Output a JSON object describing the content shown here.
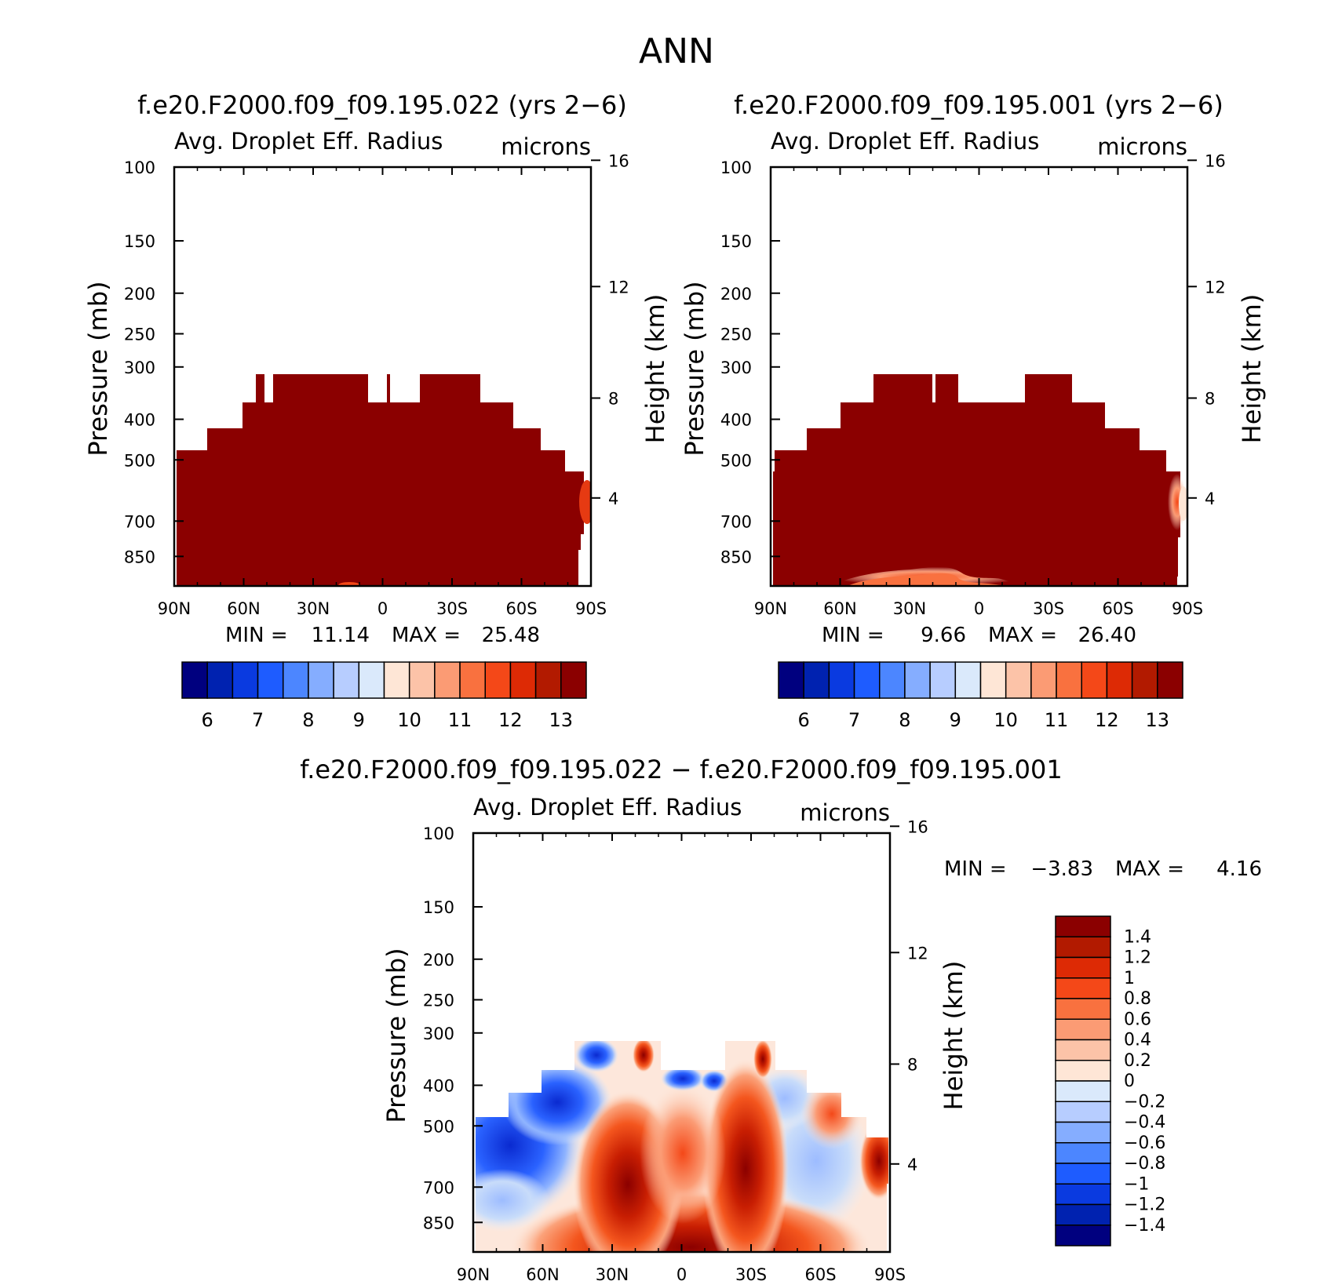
{
  "title": "ANN",
  "colors": {
    "panel_fill": "#8b0000",
    "panel_seasonal_lighter": "#e63a12",
    "axis": "#000000"
  },
  "chart_data": [
    {
      "type": "heatmap",
      "title": "f.e20.F2000.f09_f09.195.022 (yrs 2−6)",
      "variable": "Avg. Droplet Eff. Radius",
      "units": "microns",
      "ylabel": "Pressure (mb)",
      "ylabel_right": "Height (km)",
      "x_ticks": [
        "90N",
        "60N",
        "30N",
        "0",
        "30S",
        "60S",
        "90S"
      ],
      "y_ticks": [
        "100",
        "150",
        "200",
        "250",
        "300",
        "400",
        "500",
        "700",
        "850"
      ],
      "y_right_ticks": [
        "16",
        "12",
        "8",
        "4"
      ],
      "min_label": "MIN =",
      "min_value": "11.14",
      "max_label": "MAX =",
      "max_value": "25.48",
      "colorbar_labels": [
        "6",
        "7",
        "8",
        "9",
        "10",
        "11",
        "12",
        "13"
      ],
      "colorbar_colors": [
        "#00007f",
        "#0022b0",
        "#0a3ae0",
        "#1e5cff",
        "#4c86ff",
        "#85adff",
        "#b7cdff",
        "#dae9fb",
        "#fee6d6",
        "#fcc3a8",
        "#fb9b74",
        "#f9713f",
        "#f44818",
        "#dd2a05",
        "#b21a00",
        "#8b0000"
      ]
    },
    {
      "type": "heatmap",
      "title": "f.e20.F2000.f09_f09.195.001 (yrs 2−6)",
      "variable": "Avg. Droplet Eff. Radius",
      "units": "microns",
      "ylabel": "Pressure (mb)",
      "ylabel_right": "Height (km)",
      "x_ticks": [
        "90N",
        "60N",
        "30N",
        "0",
        "30S",
        "60S",
        "90S"
      ],
      "y_ticks": [
        "100",
        "150",
        "200",
        "250",
        "300",
        "400",
        "500",
        "700",
        "850"
      ],
      "y_right_ticks": [
        "16",
        "12",
        "8",
        "4"
      ],
      "min_label": "MIN =",
      "min_value": "9.66",
      "max_label": "MAX =",
      "max_value": "26.40",
      "colorbar_labels": [
        "6",
        "7",
        "8",
        "9",
        "10",
        "11",
        "12",
        "13"
      ],
      "colorbar_colors": [
        "#00007f",
        "#0022b0",
        "#0a3ae0",
        "#1e5cff",
        "#4c86ff",
        "#85adff",
        "#b7cdff",
        "#dae9fb",
        "#fee6d6",
        "#fcc3a8",
        "#fb9b74",
        "#f9713f",
        "#f44818",
        "#dd2a05",
        "#b21a00",
        "#8b0000"
      ]
    },
    {
      "type": "heatmap",
      "title": "f.e20.F2000.f09_f09.195.022 − f.e20.F2000.f09_f09.195.001",
      "variable": "Avg. Droplet Eff. Radius",
      "units": "microns",
      "ylabel": "Pressure (mb)",
      "ylabel_right": "Height (km)",
      "x_ticks": [
        "90N",
        "60N",
        "30N",
        "0",
        "30S",
        "60S",
        "90S"
      ],
      "y_ticks": [
        "100",
        "150",
        "200",
        "250",
        "300",
        "400",
        "500",
        "700",
        "850"
      ],
      "y_right_ticks": [
        "16",
        "12",
        "8",
        "4"
      ],
      "min_label": "MIN =",
      "min_value": "−3.83",
      "max_label": "MAX =",
      "max_value": "4.16",
      "colorbar_labels": [
        "1.4",
        "1.2",
        "1",
        "0.8",
        "0.6",
        "0.4",
        "0.2",
        "0",
        "−0.2",
        "−0.4",
        "−0.6",
        "−0.8",
        "−1",
        "−1.2",
        "−1.4"
      ],
      "colorbar_colors": [
        "#8b0000",
        "#b21a00",
        "#dd2a05",
        "#f44818",
        "#f9713f",
        "#fb9b74",
        "#fcc3a8",
        "#fee6d6",
        "#dae9fb",
        "#b7cdff",
        "#85adff",
        "#4c86ff",
        "#1e5cff",
        "#0a3ae0",
        "#0022b0",
        "#00007f"
      ]
    }
  ]
}
